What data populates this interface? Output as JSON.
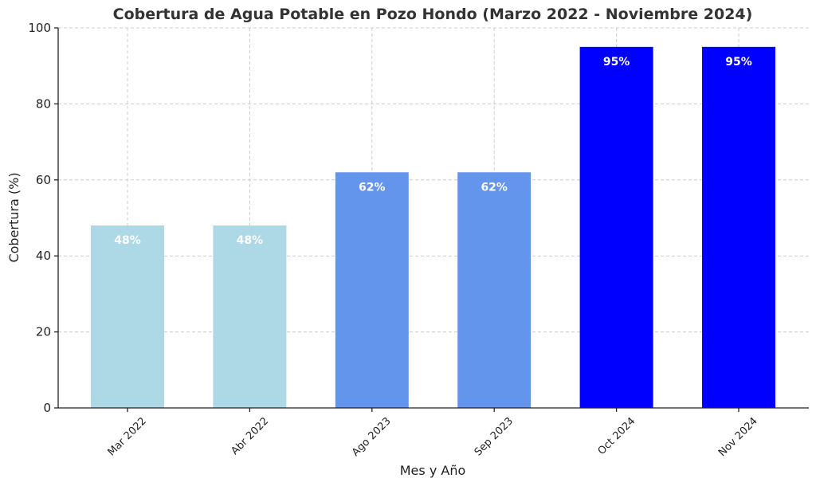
{
  "chart_data": {
    "type": "bar",
    "title": "Cobertura de Agua Potable en Pozo Hondo (Marzo 2022 - Noviembre 2024)",
    "xlabel": "Mes y Año",
    "ylabel": "Cobertura (%)",
    "categories": [
      "Mar 2022",
      "Abr 2022",
      "Ago 2023",
      "Sep 2023",
      "Oct 2024",
      "Nov 2024"
    ],
    "values": [
      48,
      48,
      62,
      62,
      95,
      95
    ],
    "data_labels": [
      "48%",
      "48%",
      "62%",
      "62%",
      "95%",
      "95%"
    ],
    "bar_colors": [
      "#add8e6",
      "#add8e6",
      "#6495ed",
      "#6495ed",
      "#0000ff",
      "#0000ff"
    ],
    "ylim": [
      0,
      100
    ],
    "yticks": [
      0,
      20,
      40,
      60,
      80,
      100
    ],
    "grid": true
  }
}
